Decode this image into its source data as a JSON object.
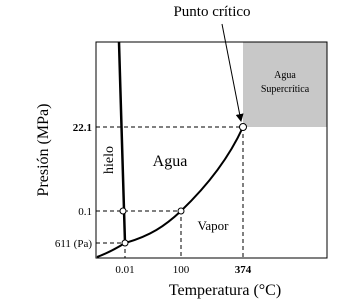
{
  "diagram": {
    "annotation": "Punto crítico",
    "x_axis_label": "Temperatura (°C)",
    "y_axis_label": "Presión (MPa)",
    "x_ticks": [
      "0.01",
      "100",
      "374"
    ],
    "y_ticks": [
      "22.1",
      "0.1",
      "611 (Pa)"
    ],
    "regions": {
      "ice": "hielo",
      "water": "Agua",
      "vapor": "Vapor",
      "supercritical": [
        "Agua",
        "Supercrítica"
      ]
    }
  }
}
